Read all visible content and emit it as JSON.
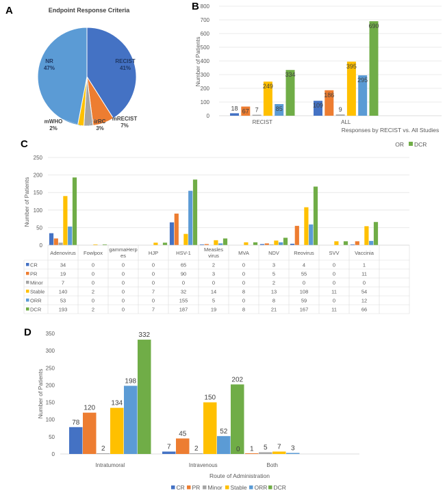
{
  "colors": {
    "CR": "#4472C4",
    "PR": "#ED7D31",
    "Minor": "#A5A5A5",
    "Stable": "#FFC000",
    "ORR": "#5B9BD5",
    "DCR": "#70AD47",
    "grid": "#e4e4e4"
  },
  "chart_data": [
    {
      "panel": "A",
      "type": "pie",
      "title": "Endpoint Response Criteria",
      "slices": [
        {
          "label": "RECIST",
          "value": 41,
          "display": "41%",
          "color": "#4472C4"
        },
        {
          "label": "mRECIST",
          "value": 7,
          "display": "7%",
          "color": "#ED7D31"
        },
        {
          "label": "irRC",
          "value": 3,
          "display": "3%",
          "color": "#A5A5A5"
        },
        {
          "label": "mWHO",
          "value": 2,
          "display": "2%",
          "color": "#FFC000"
        },
        {
          "label": "NR",
          "value": 47,
          "display": "47%",
          "color": "#5B9BD5"
        }
      ]
    },
    {
      "panel": "B",
      "type": "bar",
      "title": "",
      "xlabel": "Responses by RECIST vs. All Studies",
      "ylabel": "Number of Patients",
      "ylim": [
        0,
        800
      ],
      "yticks": [
        0,
        100,
        200,
        300,
        400,
        500,
        600,
        700,
        800
      ],
      "grid": true,
      "categories": [
        "RECIST",
        "ALL"
      ],
      "series": [
        {
          "name": "CR",
          "values": [
            18,
            109
          ]
        },
        {
          "name": "PR",
          "values": [
            67,
            186
          ]
        },
        {
          "name": "Minor",
          "values": [
            7,
            9
          ]
        },
        {
          "name": "Stable",
          "values": [
            249,
            395
          ]
        },
        {
          "name": "ORR",
          "values": [
            85,
            295
          ]
        },
        {
          "name": "DCR",
          "values": [
            334,
            690
          ]
        }
      ],
      "legend_fragment": [
        "OR",
        "DCR"
      ],
      "legend_placement": "bottom-right"
    },
    {
      "panel": "C",
      "type": "bar",
      "title": "",
      "xlabel": "",
      "ylabel": "Number of Patients",
      "ylim": [
        0,
        250
      ],
      "yticks": [
        0,
        50,
        100,
        150,
        200,
        250
      ],
      "grid": true,
      "categories": [
        "Adenovirus",
        "Fowlpox",
        "gammaHerpes",
        "HJP",
        "HSV-1",
        "Measles virus",
        "MVA",
        "NDV",
        "Reovirus",
        "SVV",
        "Vaccinia"
      ],
      "category_display": [
        [
          "Adenovirus"
        ],
        [
          "Fowlpox"
        ],
        [
          "gammaHerp",
          "es"
        ],
        [
          "HJP"
        ],
        [
          "HSV-1"
        ],
        [
          "Measles",
          "virus"
        ],
        [
          "MVA"
        ],
        [
          "NDV"
        ],
        [
          "Reovirus"
        ],
        [
          "SVV"
        ],
        [
          "Vaccinia"
        ]
      ],
      "series": [
        {
          "name": "CR",
          "values": [
            34,
            0,
            0,
            0,
            65,
            2,
            0,
            3,
            4,
            0,
            1
          ]
        },
        {
          "name": "PR",
          "values": [
            19,
            0,
            0,
            0,
            90,
            3,
            0,
            5,
            55,
            0,
            11
          ]
        },
        {
          "name": "Minor",
          "values": [
            7,
            0,
            0,
            0,
            0,
            0,
            0,
            2,
            0,
            0,
            0
          ]
        },
        {
          "name": "Stable",
          "values": [
            140,
            2,
            0,
            7,
            32,
            14,
            8,
            13,
            108,
            11,
            54
          ]
        },
        {
          "name": "ORR",
          "values": [
            53,
            0,
            0,
            0,
            155,
            5,
            0,
            8,
            59,
            0,
            12
          ]
        },
        {
          "name": "DCR",
          "values": [
            193,
            2,
            0,
            7,
            187,
            19,
            8,
            21,
            167,
            11,
            66
          ]
        }
      ],
      "data_table": true
    },
    {
      "panel": "D",
      "type": "bar",
      "title": "",
      "xlabel": "Route of Administration",
      "ylabel": "Number of Patients",
      "ylim": [
        0,
        350
      ],
      "yticks": [
        0,
        50,
        100,
        150,
        200,
        250,
        300,
        350
      ],
      "grid": false,
      "categories": [
        "Intratumoral",
        "Intravenous",
        "Both"
      ],
      "series": [
        {
          "name": "CR",
          "values": [
            78,
            7,
            0
          ]
        },
        {
          "name": "PR",
          "values": [
            120,
            45,
            1
          ]
        },
        {
          "name": "Minor",
          "values": [
            2,
            2,
            5
          ]
        },
        {
          "name": "Stable",
          "values": [
            134,
            150,
            7
          ]
        },
        {
          "name": "ORR",
          "values": [
            198,
            52,
            3
          ]
        },
        {
          "name": "DCR",
          "values": [
            332,
            202,
            null
          ]
        }
      ],
      "legend": [
        "CR",
        "PR",
        "Minor",
        "Stable",
        "ORR",
        "DCR"
      ],
      "legend_placement": "bottom"
    }
  ],
  "panel_letters": [
    "A",
    "B",
    "C",
    "D"
  ]
}
